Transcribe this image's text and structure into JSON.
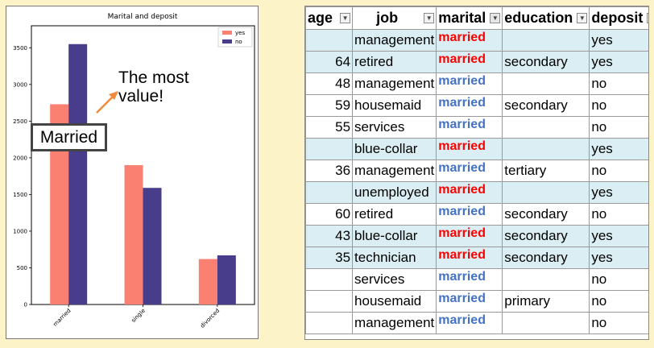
{
  "chart": {
    "title": "Marital and deposit",
    "legend": [
      {
        "label": "yes",
        "color": "#fa8072"
      },
      {
        "label": "no",
        "color": "#483d8b"
      }
    ],
    "callout_box": "Married",
    "callout_text_line1": "The most",
    "callout_text_line2": "value!",
    "arrow_color": "#f08a3c"
  },
  "chart_data": {
    "type": "bar",
    "title": "Marital and deposit",
    "categories": [
      "married",
      "single",
      "divorced"
    ],
    "series": [
      {
        "name": "yes",
        "values": [
          2730,
          1900,
          620
        ],
        "color": "#fa8072"
      },
      {
        "name": "no",
        "values": [
          3550,
          1590,
          670
        ],
        "color": "#483d8b"
      }
    ],
    "ylim": [
      0,
      3800
    ],
    "yticks": [
      0,
      500,
      1000,
      1500,
      2000,
      2500,
      3000,
      3500
    ],
    "legend_position": "top-right",
    "xlabel": "",
    "ylabel": ""
  },
  "sheet": {
    "headers": [
      "age",
      "job",
      "marital",
      "education",
      "deposit"
    ],
    "rows": [
      {
        "age": "",
        "job": "management",
        "marital": "married",
        "education": "",
        "deposit": "yes"
      },
      {
        "age": "64",
        "job": "retired",
        "marital": "married",
        "education": "secondary",
        "deposit": "yes"
      },
      {
        "age": "48",
        "job": "management",
        "marital": "married",
        "education": "",
        "deposit": "no"
      },
      {
        "age": "59",
        "job": "housemaid",
        "marital": "married",
        "education": "secondary",
        "deposit": "no"
      },
      {
        "age": "55",
        "job": "services",
        "marital": "married",
        "education": "",
        "deposit": "no"
      },
      {
        "age": "",
        "job": "blue-collar",
        "marital": "married",
        "education": "",
        "deposit": "yes"
      },
      {
        "age": "36",
        "job": "management",
        "marital": "married",
        "education": "tertiary",
        "deposit": "no"
      },
      {
        "age": "",
        "job": "unemployed",
        "marital": "married",
        "education": "",
        "deposit": "yes"
      },
      {
        "age": "60",
        "job": "retired",
        "marital": "married",
        "education": "secondary",
        "deposit": "no"
      },
      {
        "age": "43",
        "job": "blue-collar",
        "marital": "married",
        "education": "secondary",
        "deposit": "yes"
      },
      {
        "age": "35",
        "job": "technician",
        "marital": "married",
        "education": "secondary",
        "deposit": "yes"
      },
      {
        "age": "",
        "job": "services",
        "marital": "married",
        "education": "",
        "deposit": "no"
      },
      {
        "age": "",
        "job": "housemaid",
        "marital": "married",
        "education": "primary",
        "deposit": "no"
      },
      {
        "age": "",
        "job": "management",
        "marital": "married",
        "education": "",
        "deposit": "no"
      }
    ],
    "colors": {
      "yes_text": "#ff0000",
      "no_text": "#4472c4",
      "yes_row_bg": "#daeef3"
    }
  }
}
